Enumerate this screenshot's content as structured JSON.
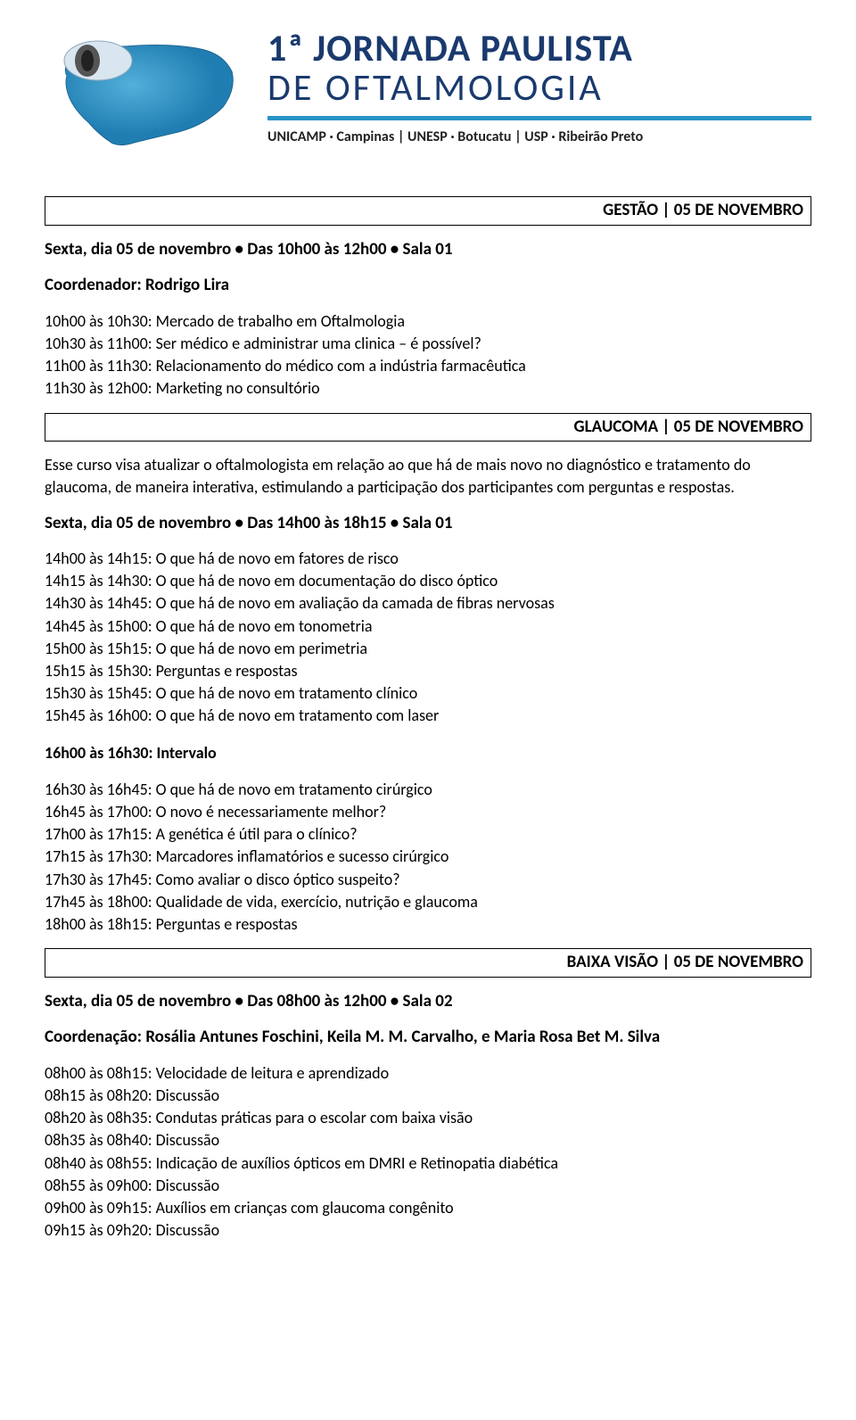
{
  "header": {
    "title_super": "1ª",
    "title_line1": "JORNADA PAULISTA",
    "title_line2": "DE OFTALMOLOGIA",
    "subtitle": "UNICAMP · Campinas | UNESP · Botucatu | USP · Ribeirão Preto"
  },
  "sections": [
    {
      "header": "GESTÃO | 05 DE NOVEMBRO",
      "session_title": "Sexta, dia 05 de novembro • Das 10h00 às 12h00 • Sala 01",
      "coordinator": "Coordenador: Rodrigo Lira",
      "blocks": [
        {
          "type": "items",
          "items": [
            "10h00 às 10h30: Mercado de trabalho em Oftalmologia",
            "10h30 às 11h00: Ser médico e administrar uma clinica – é possível?",
            "11h00 às 11h30: Relacionamento do médico com a indústria farmacêutica",
            "11h30 às 12h00: Marketing no consultório"
          ]
        }
      ]
    },
    {
      "header": "GLAUCOMA | 05 DE NOVEMBRO",
      "description": "Esse curso visa atualizar o oftalmologista em relação ao que há de mais novo no diagnóstico e tratamento do glaucoma, de maneira interativa, estimulando a participação dos participantes com perguntas e respostas.",
      "session_title": "Sexta, dia 05 de novembro • Das 14h00 às 18h15 • Sala 01",
      "blocks": [
        {
          "type": "items",
          "items": [
            "14h00 às 14h15: O que há de novo em fatores de risco",
            "14h15 às 14h30: O que há de novo em documentação do disco óptico",
            "14h30 às 14h45: O que há de novo em avaliação da camada de fibras nervosas",
            "14h45 às 15h00: O que há de novo em tonometria",
            "15h00 às 15h15: O que há de novo em perimetria",
            "15h15 às 15h30: Perguntas e respostas",
            "15h30 às 15h45: O que há de novo em tratamento clínico",
            "15h45 às 16h00: O que há de novo em tratamento com laser"
          ]
        },
        {
          "type": "break",
          "text": "16h00 às 16h30: Intervalo"
        },
        {
          "type": "items",
          "items": [
            "16h30 às 16h45: O que há de novo em tratamento cirúrgico",
            "16h45 às 17h00: O novo é necessariamente melhor?",
            "17h00 às 17h15: A genética é útil para o clínico?",
            "17h15 às 17h30: Marcadores inflamatórios e sucesso cirúrgico",
            "17h30 às 17h45: Como avaliar o disco óptico suspeito?",
            "17h45 às 18h00: Qualidade de vida, exercício, nutrição e glaucoma",
            "18h00 às 18h15: Perguntas e respostas"
          ]
        }
      ]
    },
    {
      "header": "BAIXA VISÃO | 05 DE NOVEMBRO",
      "session_title": "Sexta, dia 05 de novembro • Das 08h00 às 12h00 • Sala 02",
      "coordinator": "Coordenação: Rosália Antunes Foschini, Keila M. M. Carvalho, e Maria Rosa Bet M. Silva",
      "blocks": [
        {
          "type": "items",
          "items": [
            "08h00 às 08h15: Velocidade de leitura e aprendizado",
            "08h15 às 08h20: Discussão",
            "08h20 às 08h35: Condutas práticas para o escolar com baixa visão",
            "08h35 às 08h40: Discussão",
            "08h40 às 08h55: Indicação de auxílios ópticos em DMRI e Retinopatia diabética",
            "08h55 às 09h00: Discussão",
            "09h00 às 09h15: Auxílios em crianças com glaucoma congênito",
            "09h15 às 09h20: Discussão"
          ]
        }
      ]
    }
  ]
}
